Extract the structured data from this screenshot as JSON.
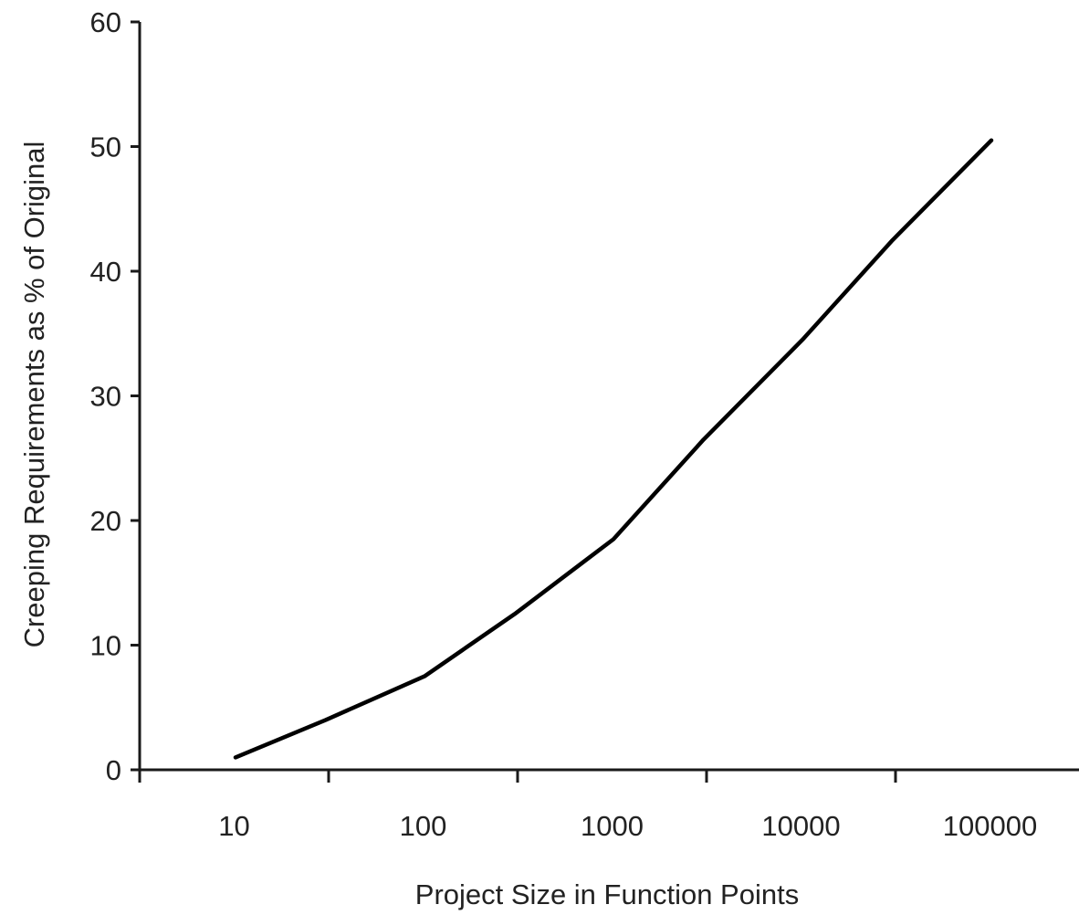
{
  "chart_data": {
    "type": "line",
    "title": "",
    "xlabel": "Project Size in Function Points",
    "ylabel": "Creeping Requirements as % of Original",
    "x_scale": "log",
    "x_tick_labels": [
      "10",
      "100",
      "1000",
      "10000",
      "100000"
    ],
    "y_tick_labels": [
      "0",
      "10",
      "20",
      "30",
      "40",
      "50",
      "60"
    ],
    "y_ticks": [
      0,
      10,
      20,
      30,
      40,
      50,
      60
    ],
    "ylim": [
      0,
      60
    ],
    "grid": false,
    "legend": "none",
    "series": [
      {
        "color": "#000000",
        "x": [
          10,
          30,
          100,
          300,
          1000,
          3000,
          10000,
          30000,
          100000
        ],
        "y": [
          1,
          4,
          7.5,
          12.5,
          18.5,
          26.5,
          34.5,
          42.5,
          50.5
        ]
      }
    ]
  }
}
